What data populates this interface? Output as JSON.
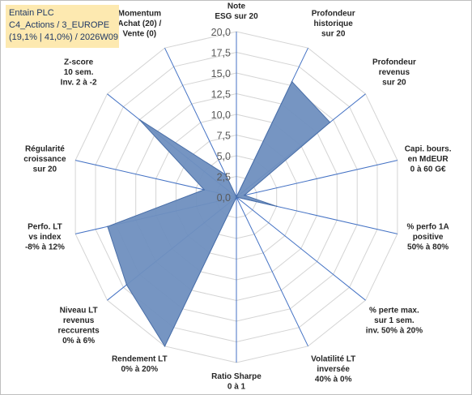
{
  "title_box": {
    "line1": "Entain PLC",
    "line2": "C4_Actions / 3_EUROPE",
    "line3": "(19,1% | 41,0%) / 2026W09"
  },
  "chart_data": {
    "type": "radar",
    "title": "",
    "rmin": 0,
    "rmax": 20,
    "ticks": [
      "0,0",
      "2,5",
      "5,0",
      "7,5",
      "10,0",
      "12,5",
      "15,0",
      "17,5",
      "20,0"
    ],
    "tick_values": [
      0,
      2.5,
      5,
      7.5,
      10,
      12.5,
      15,
      17.5,
      20
    ],
    "grid": true,
    "series_color": "#6f8fbf",
    "categories": [
      [
        "Note",
        "ESG sur 20"
      ],
      [
        "Profondeur",
        "historique",
        "sur 20"
      ],
      [
        "Profondeur",
        "revenus",
        "sur 20"
      ],
      [
        "Capi. bours.",
        "en MdEUR",
        "0 à 60 G€"
      ],
      [
        "% perfo 1A",
        "positive",
        "50% à 80%"
      ],
      [
        "% perte max.",
        "sur 1 sem.",
        "inv. 50% à 20%"
      ],
      [
        "Volatilité LT",
        "inversée",
        "40% à 0%"
      ],
      [
        "Ratio Sharpe",
        "0 à 1"
      ],
      [
        "Rendement LT",
        "0% à 20%"
      ],
      [
        "Niveau LT",
        "revenus",
        "reccurents",
        "0% à 6%"
      ],
      [
        "Perfo. LT",
        "vs index",
        "-8% à 12%"
      ],
      [
        "Régularité",
        "croissance",
        "sur 20"
      ],
      [
        "Z-score",
        "10 sem.",
        "Inv. 2 à -2"
      ],
      [
        "Momentum",
        "Achat (20) /",
        "Vente (0)"
      ]
    ],
    "series": [
      {
        "values": [
          0,
          15.5,
          14.5,
          1,
          5,
          0,
          0,
          0,
          20,
          17,
          16,
          4,
          15,
          3
        ]
      }
    ]
  }
}
